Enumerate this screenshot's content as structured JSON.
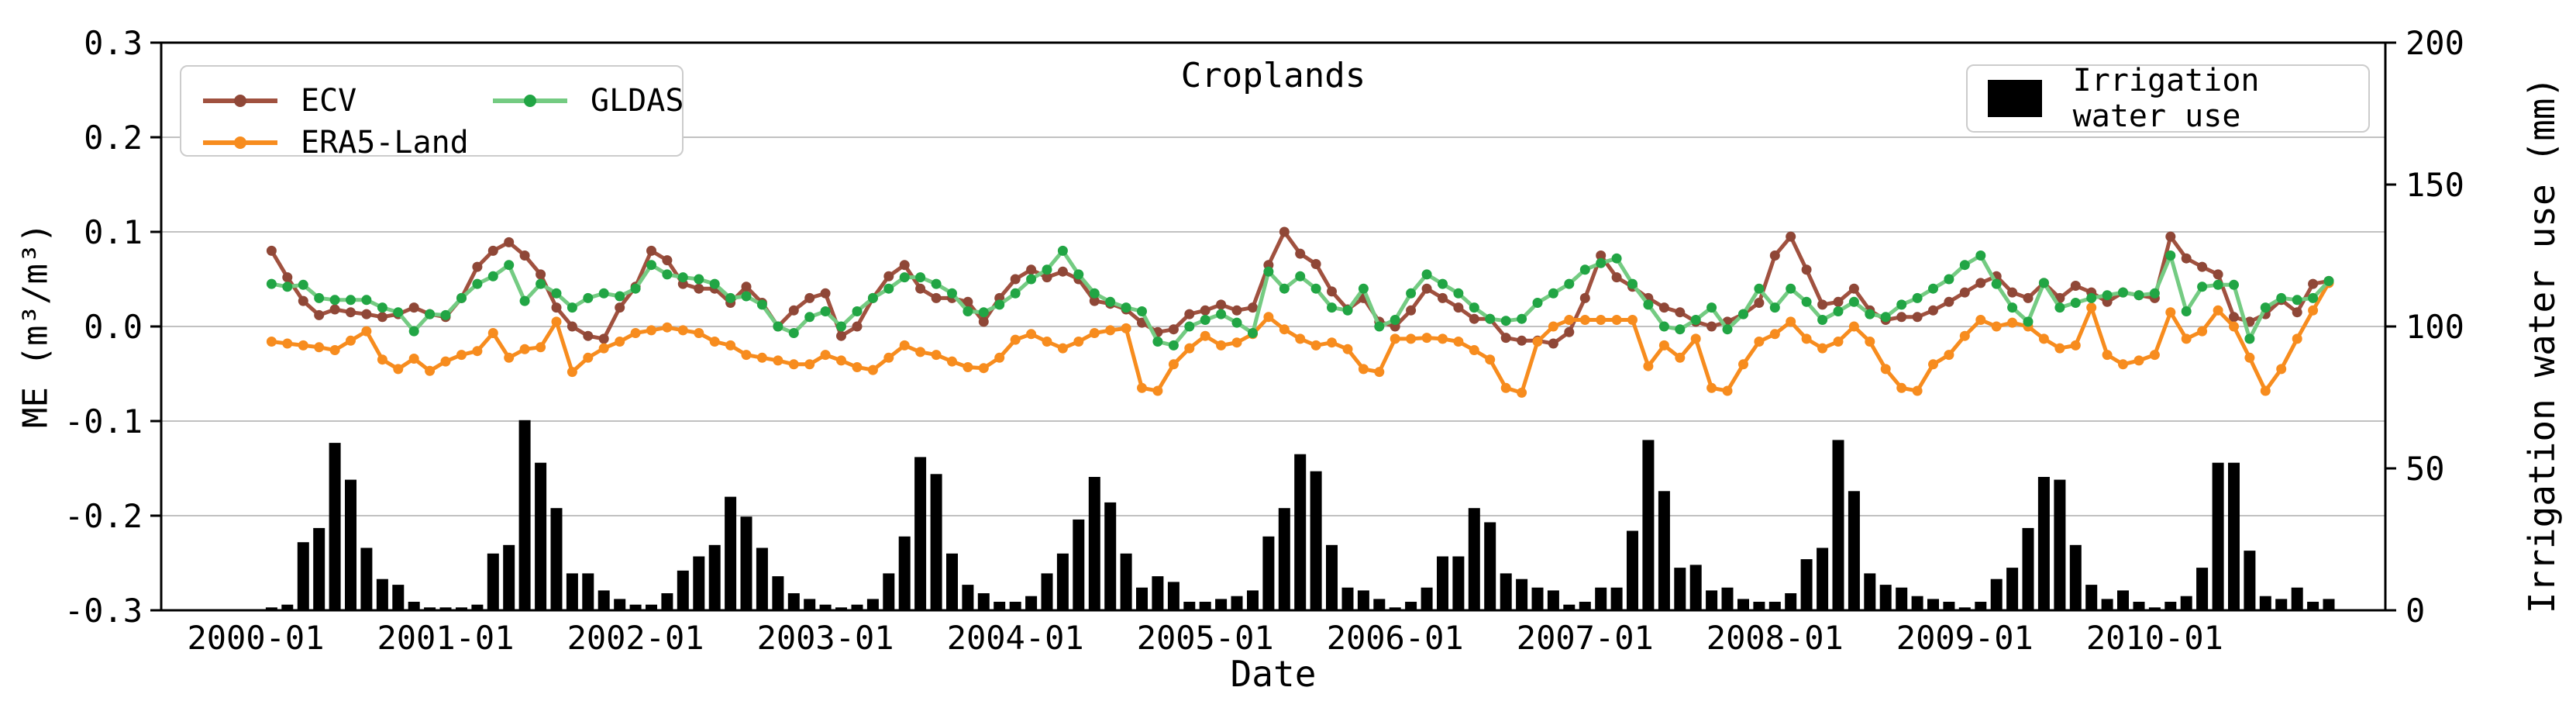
{
  "chart_data": {
    "type": "line+bar",
    "title": "Croplands",
    "xlabel": "Date",
    "ylabel_left": "ME (m³/m³)",
    "ylabel_right": "Irrigation water use (mm)",
    "ylim_left": [
      -0.3,
      0.3
    ],
    "ylim_right": [
      0,
      200
    ],
    "yticks_left": [
      "0.3",
      "0.2",
      "0.1",
      "0.0",
      "-0.1",
      "-0.2",
      "-0.3"
    ],
    "yticks_right": [
      "200",
      "150",
      "100",
      "50",
      "0"
    ],
    "xtick_labels": [
      "2000-01",
      "2001-01",
      "2002-01",
      "2003-01",
      "2004-01",
      "2005-01",
      "2006-01",
      "2007-01",
      "2008-01",
      "2009-01",
      "2010-01"
    ],
    "grid": "horizontal gridlines at left-axis ticks",
    "legend_position": "lines top-left (2 columns), bars top-right",
    "axis_color": "#000000",
    "grid_color": "#b8b8b8",
    "months": [
      "2000-01",
      "2000-02",
      "2000-03",
      "2000-04",
      "2000-05",
      "2000-06",
      "2000-07",
      "2000-08",
      "2000-09",
      "2000-10",
      "2000-11",
      "2000-12",
      "2001-01",
      "2001-02",
      "2001-03",
      "2001-04",
      "2001-05",
      "2001-06",
      "2001-07",
      "2001-08",
      "2001-09",
      "2001-10",
      "2001-11",
      "2001-12",
      "2002-01",
      "2002-02",
      "2002-03",
      "2002-04",
      "2002-05",
      "2002-06",
      "2002-07",
      "2002-08",
      "2002-09",
      "2002-10",
      "2002-11",
      "2002-12",
      "2003-01",
      "2003-02",
      "2003-03",
      "2003-04",
      "2003-05",
      "2003-06",
      "2003-07",
      "2003-08",
      "2003-09",
      "2003-10",
      "2003-11",
      "2003-12",
      "2004-01",
      "2004-02",
      "2004-03",
      "2004-04",
      "2004-05",
      "2004-06",
      "2004-07",
      "2004-08",
      "2004-09",
      "2004-10",
      "2004-11",
      "2004-12",
      "2005-01",
      "2005-02",
      "2005-03",
      "2005-04",
      "2005-05",
      "2005-06",
      "2005-07",
      "2005-08",
      "2005-09",
      "2005-10",
      "2005-11",
      "2005-12",
      "2006-01",
      "2006-02",
      "2006-03",
      "2006-04",
      "2006-05",
      "2006-06",
      "2006-07",
      "2006-08",
      "2006-09",
      "2006-10",
      "2006-11",
      "2006-12",
      "2007-01",
      "2007-02",
      "2007-03",
      "2007-04",
      "2007-05",
      "2007-06",
      "2007-07",
      "2007-08",
      "2007-09",
      "2007-10",
      "2007-11",
      "2007-12",
      "2008-01",
      "2008-02",
      "2008-03",
      "2008-04",
      "2008-05",
      "2008-06",
      "2008-07",
      "2008-08",
      "2008-09",
      "2008-10",
      "2008-11",
      "2008-12",
      "2009-01",
      "2009-02",
      "2009-03",
      "2009-04",
      "2009-05",
      "2009-06",
      "2009-07",
      "2009-08",
      "2009-09",
      "2009-10",
      "2009-11",
      "2009-12",
      "2010-01",
      "2010-02",
      "2010-03",
      "2010-04",
      "2010-05",
      "2010-06",
      "2010-07",
      "2010-08",
      "2010-09",
      "2010-10",
      "2010-11",
      "2010-12"
    ],
    "series": [
      {
        "name": "ECV",
        "line_color": "#a0513f",
        "marker_color": "#8f4737",
        "values": [
          null,
          0.08,
          0.052,
          0.027,
          0.012,
          0.018,
          0.015,
          0.013,
          0.01,
          0.013,
          0.02,
          0.013,
          0.01,
          0.03,
          0.063,
          0.08,
          0.089,
          0.075,
          0.055,
          0.02,
          0.0,
          -0.01,
          -0.013,
          0.02,
          0.042,
          0.08,
          0.07,
          0.045,
          0.04,
          0.04,
          0.025,
          0.042,
          0.025,
          0.0,
          0.017,
          0.03,
          0.035,
          -0.01,
          0.0,
          0.03,
          0.053,
          0.065,
          0.04,
          0.03,
          0.03,
          0.026,
          0.005,
          0.03,
          0.05,
          0.06,
          0.052,
          0.058,
          0.05,
          0.027,
          0.024,
          0.018,
          0.004,
          -0.006,
          -0.003,
          0.013,
          0.017,
          0.023,
          0.017,
          0.02,
          0.065,
          0.1,
          0.077,
          0.066,
          0.037,
          0.018,
          0.03,
          0.005,
          0.0,
          0.017,
          0.04,
          0.03,
          0.02,
          0.008,
          0.008,
          -0.012,
          -0.015,
          -0.015,
          -0.018,
          -0.006,
          0.03,
          0.075,
          0.052,
          0.042,
          0.03,
          0.02,
          0.015,
          0.005,
          0.0,
          0.005,
          0.013,
          0.025,
          0.075,
          0.095,
          0.06,
          0.023,
          0.026,
          0.04,
          0.017,
          0.007,
          0.01,
          0.01,
          0.017,
          0.026,
          0.036,
          0.046,
          0.053,
          0.036,
          0.03,
          0.046,
          0.03,
          0.043,
          0.036,
          0.026,
          0.036,
          0.033,
          0.03,
          0.095,
          0.072,
          0.063,
          0.055,
          0.01,
          0.005,
          0.013,
          0.028,
          0.015,
          0.045,
          0.048
        ]
      },
      {
        "name": "ERA5-Land",
        "line_color": "#f78c1e",
        "marker_color": "#f78c1e",
        "values": [
          null,
          -0.016,
          -0.018,
          -0.02,
          -0.022,
          -0.025,
          -0.015,
          -0.005,
          -0.035,
          -0.045,
          -0.034,
          -0.047,
          -0.037,
          -0.03,
          -0.026,
          -0.007,
          -0.033,
          -0.024,
          -0.022,
          0.005,
          -0.048,
          -0.033,
          -0.023,
          -0.016,
          -0.007,
          -0.004,
          -0.001,
          -0.004,
          -0.007,
          -0.016,
          -0.02,
          -0.03,
          -0.033,
          -0.036,
          -0.04,
          -0.04,
          -0.03,
          -0.036,
          -0.043,
          -0.046,
          -0.033,
          -0.02,
          -0.027,
          -0.03,
          -0.037,
          -0.043,
          -0.044,
          -0.033,
          -0.014,
          -0.008,
          -0.016,
          -0.023,
          -0.016,
          -0.007,
          -0.004,
          -0.002,
          -0.065,
          -0.068,
          -0.04,
          -0.023,
          -0.01,
          -0.02,
          -0.017,
          -0.008,
          0.01,
          -0.003,
          -0.013,
          -0.02,
          -0.017,
          -0.024,
          -0.045,
          -0.048,
          -0.013,
          -0.013,
          -0.012,
          -0.013,
          -0.016,
          -0.025,
          -0.035,
          -0.065,
          -0.07,
          -0.016,
          0.0,
          0.007,
          0.007,
          0.007,
          0.007,
          0.007,
          -0.042,
          -0.02,
          -0.033,
          -0.013,
          -0.065,
          -0.068,
          -0.04,
          -0.016,
          -0.008,
          0.005,
          -0.013,
          -0.023,
          -0.016,
          0.0,
          -0.016,
          -0.045,
          -0.065,
          -0.068,
          -0.04,
          -0.03,
          -0.01,
          0.007,
          0.0,
          0.004,
          0.0,
          -0.013,
          -0.023,
          -0.02,
          0.02,
          -0.03,
          -0.04,
          -0.036,
          -0.03,
          0.015,
          -0.013,
          -0.005,
          0.017,
          0.0,
          -0.033,
          -0.068,
          -0.045,
          -0.013,
          0.017,
          0.046
        ]
      },
      {
        "name": "GLDAS",
        "line_color": "#74cb82",
        "marker_color": "#21a544",
        "values": [
          null,
          0.045,
          0.042,
          0.044,
          0.03,
          0.028,
          0.028,
          0.028,
          0.02,
          0.015,
          -0.005,
          0.013,
          0.012,
          0.03,
          0.045,
          0.053,
          0.065,
          0.027,
          0.045,
          0.035,
          0.02,
          0.03,
          0.035,
          0.032,
          0.04,
          0.065,
          0.055,
          0.052,
          0.05,
          0.045,
          0.03,
          0.032,
          0.023,
          0.0,
          -0.007,
          0.01,
          0.016,
          0.0,
          0.016,
          0.03,
          0.04,
          0.052,
          0.052,
          0.045,
          0.035,
          0.016,
          0.015,
          0.023,
          0.035,
          0.05,
          0.06,
          0.08,
          0.055,
          0.035,
          0.026,
          0.02,
          0.016,
          -0.016,
          -0.02,
          0.0,
          0.007,
          0.013,
          0.004,
          -0.007,
          0.058,
          0.04,
          0.053,
          0.04,
          0.02,
          0.017,
          0.04,
          0.0,
          0.007,
          0.035,
          0.055,
          0.045,
          0.035,
          0.02,
          0.008,
          0.006,
          0.008,
          0.025,
          0.035,
          0.045,
          0.06,
          0.067,
          0.072,
          0.045,
          0.023,
          0.0,
          -0.003,
          0.007,
          0.02,
          -0.003,
          0.013,
          0.04,
          0.02,
          0.04,
          0.026,
          0.007,
          0.016,
          0.026,
          0.013,
          0.01,
          0.023,
          0.03,
          0.04,
          0.05,
          0.065,
          0.075,
          0.045,
          0.02,
          0.005,
          0.046,
          0.02,
          0.025,
          0.03,
          0.033,
          0.036,
          0.033,
          0.035,
          0.075,
          0.016,
          0.042,
          0.044,
          0.044,
          -0.013,
          0.02,
          0.03,
          0.028,
          0.03,
          0.048
        ]
      }
    ],
    "bars": {
      "name": "Irrigation water use",
      "color": "#000000",
      "values": [
        0,
        1,
        2,
        24,
        29,
        59,
        46,
        22,
        11,
        9,
        3,
        1,
        1,
        1,
        2,
        20,
        23,
        67,
        52,
        36,
        13,
        13,
        7,
        4,
        2,
        2,
        6,
        14,
        19,
        23,
        40,
        33,
        22,
        12,
        6,
        4,
        2,
        1,
        2,
        4,
        13,
        26,
        54,
        48,
        20,
        9,
        6,
        3,
        3,
        5,
        13,
        20,
        32,
        47,
        38,
        20,
        8,
        12,
        10,
        3,
        3,
        4,
        5,
        7,
        26,
        36,
        55,
        49,
        23,
        8,
        7,
        4,
        1,
        3,
        8,
        19,
        19,
        36,
        31,
        13,
        11,
        8,
        7,
        2,
        3,
        8,
        8,
        28,
        60,
        42,
        15,
        16,
        7,
        8,
        4,
        3,
        3,
        6,
        18,
        22,
        60,
        42,
        13,
        9,
        8,
        5,
        4,
        3,
        1,
        3,
        11,
        15,
        29,
        47,
        46,
        23,
        9,
        4,
        7,
        3,
        1,
        3,
        5,
        15,
        52,
        52,
        21,
        5,
        4,
        8,
        3,
        4
      ]
    }
  }
}
